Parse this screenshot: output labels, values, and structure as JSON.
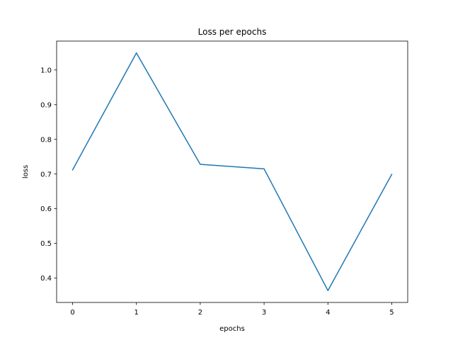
{
  "chart_data": {
    "type": "line",
    "title": "Loss per epochs",
    "xlabel": "epochs",
    "ylabel": "loss",
    "x": [
      0,
      1,
      2,
      3,
      4,
      5
    ],
    "series": [
      {
        "values": [
          0.712,
          1.049,
          0.728,
          0.715,
          0.364,
          0.699
        ],
        "color": "#1f77b4"
      }
    ],
    "xticks": [
      0,
      1,
      2,
      3,
      4,
      5
    ],
    "yticks": [
      0.4,
      0.5,
      0.6,
      0.7,
      0.8,
      0.9,
      1.0
    ],
    "ytick_labels": [
      "0.4",
      "0.5",
      "0.6",
      "0.7",
      "0.8",
      "0.9",
      "1.0"
    ],
    "xlim": [
      -0.25,
      5.25
    ],
    "ylim": [
      0.3297,
      1.0833
    ],
    "grid": false
  }
}
